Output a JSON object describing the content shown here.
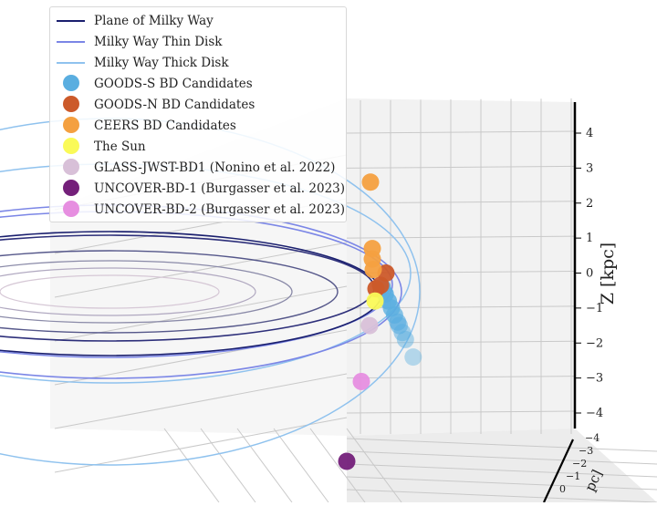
{
  "chart_data": {
    "type": "scatter",
    "projection": "3d",
    "zlabel": "Z [kpc]",
    "ylabel_fragment": "pc]",
    "z_ticks": [
      4,
      3,
      2,
      1,
      0,
      -1,
      -2,
      -3,
      -4
    ],
    "y_ticks": [
      0,
      -1,
      -2,
      -3,
      -4
    ],
    "zlim": [
      -4.5,
      4.5
    ],
    "legend_placement": "top-left",
    "grid": true,
    "lines": [
      {
        "name": "Plane of Milky Way",
        "color": "#1a1f6e"
      },
      {
        "name": "Milky Way Thin Disk",
        "color": "#7b86e6"
      },
      {
        "name": "Milky Way Thick Disk",
        "color": "#8fc2ee"
      }
    ],
    "series": [
      {
        "name": "GOODS-S BD Candidates",
        "color": "#5aaee0",
        "z_values": [
          -0.4,
          -0.6,
          -0.8,
          -1.0,
          -1.2,
          -1.4,
          -1.5,
          -1.7,
          -1.9,
          -2.4
        ]
      },
      {
        "name": "GOODS-N BD Candidates",
        "color": "#cc5a2a",
        "z_values": [
          0.0,
          -0.35,
          -0.45
        ]
      },
      {
        "name": "CEERS BD Candidates",
        "color": "#f4a040",
        "z_values": [
          2.6,
          0.7,
          0.4,
          0.1
        ]
      },
      {
        "name": "The Sun",
        "color": "#fafa58",
        "z_values": [
          -0.8
        ]
      },
      {
        "name": "GLASS-JWST-BD1 (Nonino et al. 2022)",
        "color": "#d8c0d8",
        "z_values": [
          -1.5
        ]
      },
      {
        "name": "UNCOVER-BD-1 (Burgasser et al. 2023)",
        "color": "#74207a",
        "z_values": [
          -5.5
        ]
      },
      {
        "name": "UNCOVER-BD-2 (Burgasser et al. 2023)",
        "color": "#e68ee0",
        "z_values": [
          -3.1
        ]
      }
    ]
  }
}
